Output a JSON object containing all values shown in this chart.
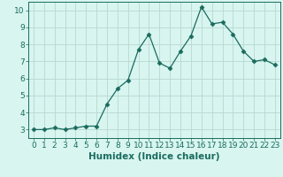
{
  "x": [
    0,
    1,
    2,
    3,
    4,
    5,
    6,
    7,
    8,
    9,
    10,
    11,
    12,
    13,
    14,
    15,
    16,
    17,
    18,
    19,
    20,
    21,
    22,
    23
  ],
  "y": [
    3.0,
    3.0,
    3.1,
    3.0,
    3.1,
    3.2,
    3.2,
    4.5,
    5.4,
    5.9,
    7.7,
    8.6,
    6.9,
    6.6,
    7.6,
    8.5,
    10.2,
    9.2,
    9.3,
    8.6,
    7.6,
    7.0,
    7.1,
    6.8
  ],
  "line_color": "#1a6b5e",
  "marker": "D",
  "marker_size": 2.5,
  "bg_color": "#d8f5f0",
  "grid_color": "#b8d8d0",
  "xlabel": "Humidex (Indice chaleur)",
  "xlim": [
    -0.5,
    23.5
  ],
  "ylim": [
    2.5,
    10.5
  ],
  "yticks": [
    3,
    4,
    5,
    6,
    7,
    8,
    9,
    10
  ],
  "xticks": [
    0,
    1,
    2,
    3,
    4,
    5,
    6,
    7,
    8,
    9,
    10,
    11,
    12,
    13,
    14,
    15,
    16,
    17,
    18,
    19,
    20,
    21,
    22,
    23
  ],
  "tick_fontsize": 6.5,
  "xlabel_fontsize": 7.5,
  "tick_color": "#1a6b5e",
  "label_color": "#1a6b5e",
  "spine_color": "#1a6b5e"
}
